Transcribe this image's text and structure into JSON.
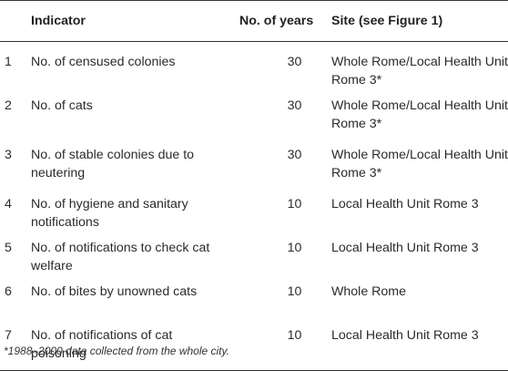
{
  "table": {
    "headers": {
      "index": "",
      "indicator": "Indicator",
      "years": "No. of years",
      "site": "Site (see Figure 1)"
    },
    "rows": [
      {
        "n": "1",
        "indicator": "No. of censused colonies",
        "years": "30",
        "site": "Whole Rome/Local Health Unit Rome 3*"
      },
      {
        "n": "2",
        "indicator": "No. of cats",
        "years": "30",
        "site": "Whole Rome/Local Health Unit Rome 3*"
      },
      {
        "n": "3",
        "indicator": "No. of stable colonies due to neutering",
        "years": "30",
        "site": "Whole Rome/Local Health Unit Rome 3*"
      },
      {
        "n": "4",
        "indicator": "No. of hygiene and sanitary notifications",
        "years": "10",
        "site": "Local Health Unit Rome 3"
      },
      {
        "n": "5",
        "indicator": "No. of notifications to check cat welfare",
        "years": "10",
        "site": "Local Health Unit Rome 3"
      },
      {
        "n": "6",
        "indicator": "No. of bites by unowned cats",
        "years": "10",
        "site": "Whole Rome"
      },
      {
        "n": "7",
        "indicator": "No. of notifications of cat poisoning",
        "years": "10",
        "site": "Local Health Unit Rome 3"
      }
    ]
  },
  "footnote": "*1988–2000 data collected from the whole city."
}
